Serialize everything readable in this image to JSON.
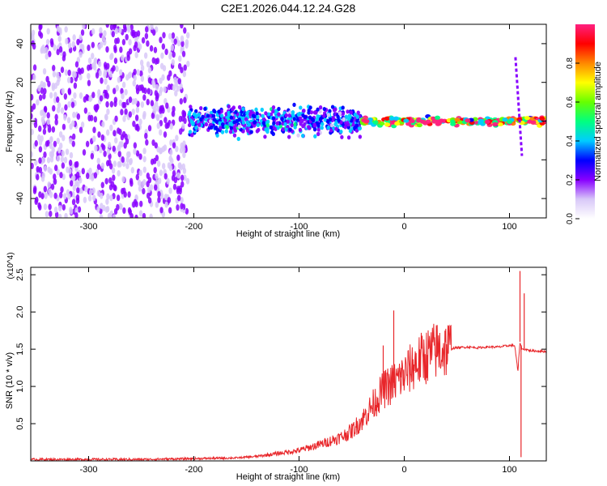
{
  "title": "C2E1.2026.044.12.24.G28",
  "chart_data": [
    {
      "type": "heatmap",
      "xlabel": "Height of straight line (km)",
      "ylabel": "Frequency (Hz)",
      "xlim": [
        -355,
        135
      ],
      "ylim": [
        -50,
        50
      ],
      "xticks": [
        -300,
        -200,
        -100,
        0,
        100
      ],
      "yticks": [
        -40,
        -20,
        0,
        20,
        40
      ],
      "colorbar": {
        "label": "Normalized spectral amplitude",
        "range": [
          0,
          1
        ],
        "ticks": [
          0.0,
          0.2,
          0.4,
          0.6,
          0.8
        ],
        "colors": [
          "#ffffff",
          "#d8c8f8",
          "#8800ff",
          "#0000ff",
          "#00ccff",
          "#00ff80",
          "#66ff00",
          "#ffff00",
          "#ff8800",
          "#ff0000",
          "#ff2080"
        ]
      },
      "regions": [
        {
          "x": [
            -355,
            -205
          ],
          "freq": [
            -50,
            50
          ],
          "amplitude": 0.12,
          "description": "scattered noise"
        },
        {
          "x": [
            -205,
            -40
          ],
          "freq": [
            -10,
            10
          ],
          "amplitude": 0.35,
          "description": "broadening signal band"
        },
        {
          "x": [
            -40,
            135
          ],
          "freq": [
            -3,
            3
          ],
          "amplitude": 0.75,
          "description": "narrow carrier near 0 Hz"
        }
      ],
      "features": [
        {
          "x": 108,
          "freq": [
            -18,
            33
          ],
          "description": "diagonal streak"
        }
      ]
    },
    {
      "type": "line",
      "xlabel": "Height of straight line (km)",
      "ylabel": "SNR (10 * v/v)",
      "y_multiplier": "(x10^4)",
      "xlim": [
        -355,
        135
      ],
      "ylim": [
        0,
        2.6
      ],
      "xticks": [
        -300,
        -200,
        -100,
        0,
        100
      ],
      "yticks": [
        0.5,
        1.0,
        1.5,
        2.0,
        2.5
      ],
      "series": [
        {
          "color": "#e8262a",
          "x": [
            -355,
            -300,
            -250,
            -200,
            -160,
            -140,
            -120,
            -100,
            -80,
            -60,
            -50,
            -40,
            -30,
            -20,
            -10,
            0,
            10,
            20,
            30,
            40,
            50,
            60,
            70,
            80,
            90,
            100,
            105,
            108,
            110,
            112,
            115,
            120,
            135
          ],
          "y": [
            0.02,
            0.02,
            0.02,
            0.03,
            0.04,
            0.06,
            0.1,
            0.14,
            0.22,
            0.32,
            0.4,
            0.55,
            0.75,
            0.95,
            1.05,
            1.15,
            1.3,
            1.4,
            1.48,
            1.5,
            1.52,
            1.53,
            1.52,
            1.53,
            1.53,
            1.55,
            1.55,
            1.2,
            1.6,
            1.5,
            1.5,
            1.48,
            1.47
          ],
          "spikes": [
            {
              "x": -20,
              "y": 1.55
            },
            {
              "x": -10,
              "y": 2.02
            },
            {
              "x": -3,
              "y": 1.25
            },
            {
              "x": 110,
              "y": 2.55
            },
            {
              "x": 111,
              "y": 0.05
            },
            {
              "x": 114,
              "y": 2.25
            }
          ]
        }
      ]
    }
  ]
}
